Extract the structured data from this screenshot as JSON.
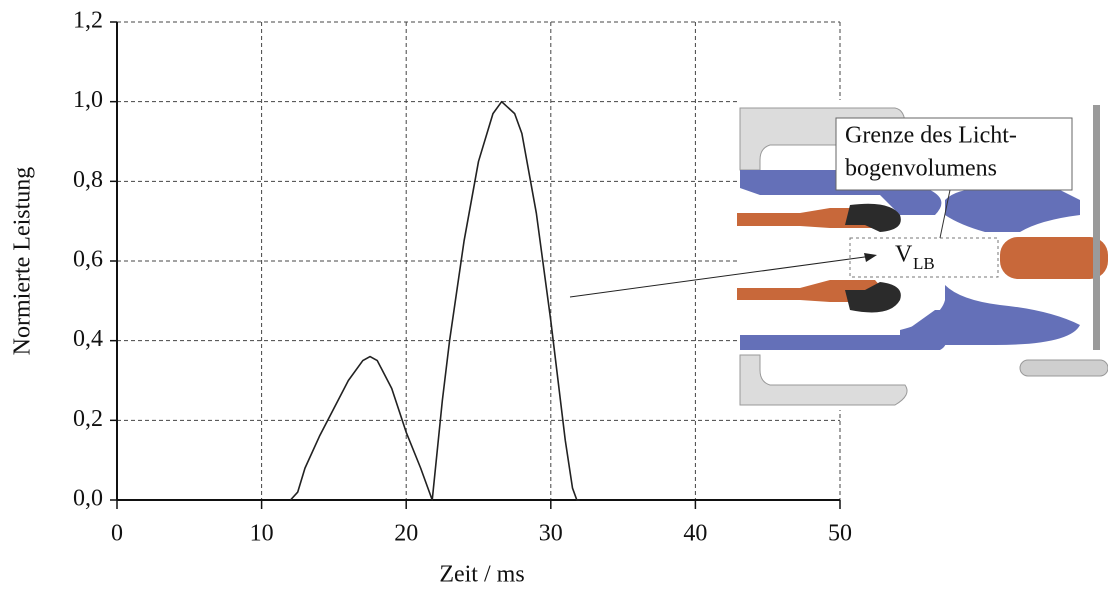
{
  "chart_data": {
    "type": "line",
    "x": [
      12,
      12.5,
      13,
      14,
      15,
      16,
      17,
      17.5,
      18,
      19,
      20,
      21,
      21.8,
      22.5,
      23,
      24,
      25,
      26,
      26.6,
      27.5,
      28,
      29,
      30,
      31,
      31.5,
      31.8,
      32
    ],
    "values": [
      0,
      0.02,
      0.08,
      0.16,
      0.23,
      0.3,
      0.35,
      0.36,
      0.35,
      0.28,
      0.17,
      0.08,
      0,
      0.25,
      0.4,
      0.65,
      0.85,
      0.97,
      1.0,
      0.97,
      0.92,
      0.72,
      0.45,
      0.15,
      0.03,
      0,
      0
    ],
    "color": "#222222",
    "xlabel": "Zeit / ms",
    "ylabel": "Normierte Leistung",
    "xlim": [
      0,
      50
    ],
    "xticks": [
      0,
      10,
      20,
      30,
      40,
      50
    ],
    "ylim": [
      0,
      1.2
    ],
    "yticks": [
      {
        "value": 0,
        "label": "0,0"
      },
      {
        "value": 0.2,
        "label": "0,2"
      },
      {
        "value": 0.4,
        "label": "0,4"
      },
      {
        "value": 0.6,
        "label": "0,6"
      },
      {
        "value": 0.8,
        "label": "0,8"
      },
      {
        "value": 1.0,
        "label": "1,0"
      },
      {
        "value": 1.2,
        "label": "1,2"
      }
    ],
    "grid": true,
    "annotations": {
      "boundary_line1": "Grenze des Licht-",
      "boundary_line2": "bogenvolumens",
      "volume": "V",
      "volume_sub": "LB"
    }
  }
}
